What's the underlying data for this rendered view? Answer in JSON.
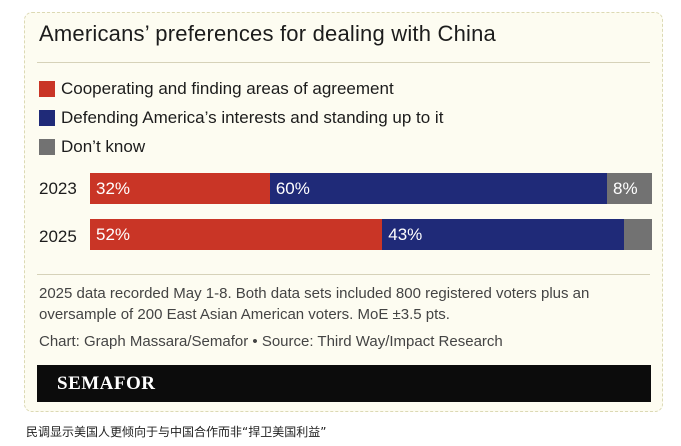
{
  "title": "Americans’ preferences for dealing with China",
  "legend": [
    {
      "label": "Cooperating and finding areas of agreement",
      "color": "#c93526"
    },
    {
      "label": "Defending America’s interests and standing up to it",
      "color": "#1f2a78"
    },
    {
      "label": "Don’t know",
      "color": "#727272"
    }
  ],
  "chart_data": {
    "type": "bar",
    "orientation": "horizontal",
    "stacked": true,
    "categories": [
      "2023",
      "2025"
    ],
    "series": [
      {
        "name": "Cooperating and finding areas of agreement",
        "values": [
          32,
          52
        ],
        "labels": [
          "32%",
          "52%"
        ],
        "color": "#c93526"
      },
      {
        "name": "Defending America’s interests and standing up to it",
        "values": [
          60,
          43
        ],
        "labels": [
          "60%",
          "43%"
        ],
        "color": "#1f2a78"
      },
      {
        "name": "Don’t know",
        "values": [
          8,
          5
        ],
        "labels": [
          "8%",
          ""
        ],
        "color": "#727272"
      }
    ],
    "xlim": [
      0,
      100
    ],
    "grid": false,
    "legend_position": "top-left"
  },
  "note": "2025 data recorded May 1-8. Both data sets included 800 registered voters plus an oversample of 200 East Asian American voters. MoE ±3.5 pts.",
  "credit": "Chart: Graph Massara/Semafor • Source: Third Way/Impact Research",
  "brand": "SEMAFOR",
  "caption": "民调显示美国人更倾向于与中国合作而非“捍卫美国利益”"
}
